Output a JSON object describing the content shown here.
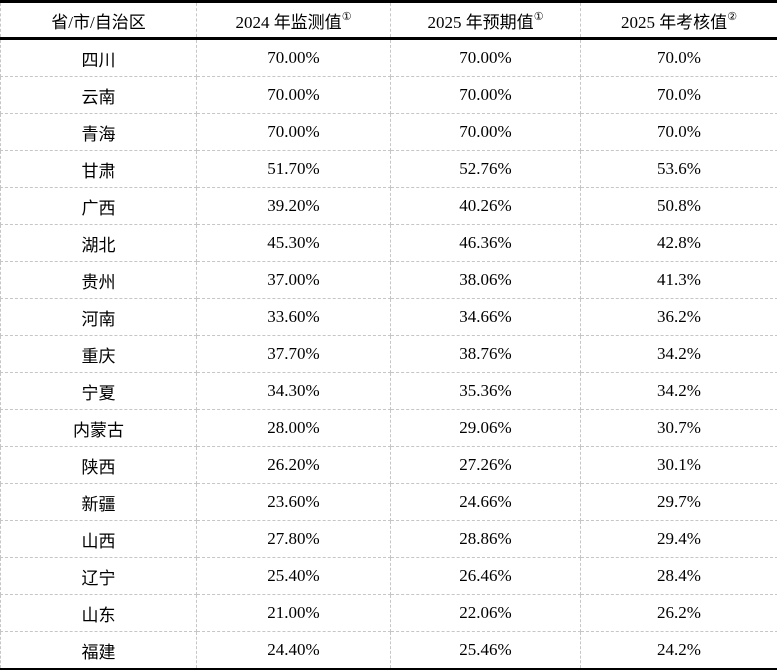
{
  "table": {
    "columns": [
      {
        "label": "省/市/自治区",
        "sup": ""
      },
      {
        "label": "2024 年监测值",
        "sup": "①"
      },
      {
        "label": "2025 年预期值",
        "sup": "①"
      },
      {
        "label": "2025 年考核值",
        "sup": "②"
      }
    ],
    "rows": [
      {
        "province": "四川",
        "v2024": "70.00%",
        "v2025_expected": "70.00%",
        "v2025_assess": "70.0%"
      },
      {
        "province": "云南",
        "v2024": "70.00%",
        "v2025_expected": "70.00%",
        "v2025_assess": "70.0%"
      },
      {
        "province": "青海",
        "v2024": "70.00%",
        "v2025_expected": "70.00%",
        "v2025_assess": "70.0%"
      },
      {
        "province": "甘肃",
        "v2024": "51.70%",
        "v2025_expected": "52.76%",
        "v2025_assess": "53.6%"
      },
      {
        "province": "广西",
        "v2024": "39.20%",
        "v2025_expected": "40.26%",
        "v2025_assess": "50.8%"
      },
      {
        "province": "湖北",
        "v2024": "45.30%",
        "v2025_expected": "46.36%",
        "v2025_assess": "42.8%"
      },
      {
        "province": "贵州",
        "v2024": "37.00%",
        "v2025_expected": "38.06%",
        "v2025_assess": "41.3%"
      },
      {
        "province": "河南",
        "v2024": "33.60%",
        "v2025_expected": "34.66%",
        "v2025_assess": "36.2%"
      },
      {
        "province": "重庆",
        "v2024": "37.70%",
        "v2025_expected": "38.76%",
        "v2025_assess": "34.2%"
      },
      {
        "province": "宁夏",
        "v2024": "34.30%",
        "v2025_expected": "35.36%",
        "v2025_assess": "34.2%"
      },
      {
        "province": "内蒙古",
        "v2024": "28.00%",
        "v2025_expected": "29.06%",
        "v2025_assess": "30.7%"
      },
      {
        "province": "陕西",
        "v2024": "26.20%",
        "v2025_expected": "27.26%",
        "v2025_assess": "30.1%"
      },
      {
        "province": "新疆",
        "v2024": "23.60%",
        "v2025_expected": "24.66%",
        "v2025_assess": "29.7%"
      },
      {
        "province": "山西",
        "v2024": "27.80%",
        "v2025_expected": "28.86%",
        "v2025_assess": "29.4%"
      },
      {
        "province": "辽宁",
        "v2024": "25.40%",
        "v2025_expected": "26.46%",
        "v2025_assess": "28.4%"
      },
      {
        "province": "山东",
        "v2024": "21.00%",
        "v2025_expected": "22.06%",
        "v2025_assess": "26.2%"
      },
      {
        "province": "福建",
        "v2024": "24.40%",
        "v2025_expected": "25.46%",
        "v2025_assess": "24.2%"
      }
    ]
  },
  "chart_data": {
    "type": "table",
    "title": "",
    "categories": [
      "四川",
      "云南",
      "青海",
      "甘肃",
      "广西",
      "湖北",
      "贵州",
      "河南",
      "重庆",
      "宁夏",
      "内蒙古",
      "陕西",
      "新疆",
      "山西",
      "辽宁",
      "山东",
      "福建"
    ],
    "series": [
      {
        "name": "2024 年监测值①",
        "values": [
          70.0,
          70.0,
          70.0,
          51.7,
          39.2,
          45.3,
          37.0,
          33.6,
          37.7,
          34.3,
          28.0,
          26.2,
          23.6,
          27.8,
          25.4,
          21.0,
          24.4
        ]
      },
      {
        "name": "2025 年预期值①",
        "values": [
          70.0,
          70.0,
          70.0,
          52.76,
          40.26,
          46.36,
          38.06,
          34.66,
          38.76,
          35.36,
          29.06,
          27.26,
          24.66,
          28.86,
          26.46,
          22.06,
          25.46
        ]
      },
      {
        "name": "2025 年考核值②",
        "values": [
          70.0,
          70.0,
          70.0,
          53.6,
          50.8,
          42.8,
          41.3,
          36.2,
          34.2,
          34.2,
          30.7,
          30.1,
          29.7,
          29.4,
          28.4,
          26.2,
          24.2
        ]
      }
    ]
  }
}
